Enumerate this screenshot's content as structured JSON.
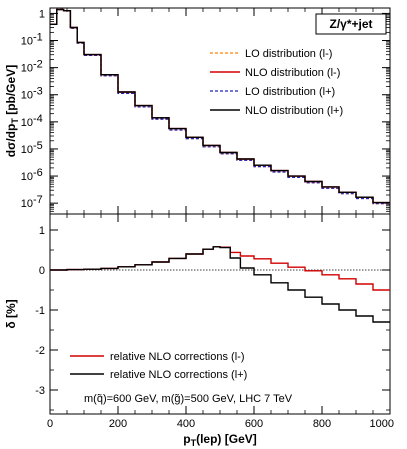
{
  "title_box": "Z/γ*+jet",
  "note": "m(q̃)=600 GeV, m(g̃)=500 GeV, LHC 7 TeV",
  "colors": {
    "lo_lminus": "#ff8000",
    "nlo_lminus": "#d00000",
    "lo_lplus": "#2020c0",
    "nlo_lplus": "#000000",
    "zero_line": "#000000"
  },
  "chart_data": [
    {
      "type": "line",
      "panel": "top",
      "xlabel": "",
      "ylabel": "dσ/dp_T [pb/GeV]",
      "ylabel_main": "dσ/dp",
      "ylabel_sub": "T",
      "ylabel_unit": " [pb/GeV]",
      "xlim": [
        0,
        1000
      ],
      "ylim_log10": [
        -7.4,
        0.2
      ],
      "yscale": "log",
      "yticks": [
        {
          "exp": 0,
          "label": "1",
          "sup": ""
        },
        {
          "exp": -1,
          "label": "10",
          "sup": "-1"
        },
        {
          "exp": -2,
          "label": "10",
          "sup": "-2"
        },
        {
          "exp": -3,
          "label": "10",
          "sup": "-3"
        },
        {
          "exp": -4,
          "label": "10",
          "sup": "-4"
        },
        {
          "exp": -5,
          "label": "10",
          "sup": "-5"
        },
        {
          "exp": -6,
          "label": "10",
          "sup": "-6"
        },
        {
          "exp": -7,
          "label": "10",
          "sup": "-7"
        }
      ],
      "x": [
        0,
        20,
        40,
        60,
        80,
        100,
        150,
        200,
        250,
        300,
        350,
        400,
        450,
        500,
        550,
        600,
        650,
        700,
        750,
        800,
        850,
        900,
        950,
        1000
      ],
      "series": [
        {
          "name": "LO distribution (l-)",
          "key": "lo_lminus",
          "style": "dashed",
          "values_log10": [
            -0.4,
            0.15,
            0.1,
            -0.55,
            -1.1,
            -1.55,
            -2.3,
            -2.95,
            -3.45,
            -3.9,
            -4.3,
            -4.62,
            -4.92,
            -5.18,
            -5.42,
            -5.65,
            -5.85,
            -6.05,
            -6.25,
            -6.45,
            -6.65,
            -6.83,
            -7.02,
            -7.2
          ]
        },
        {
          "name": "NLO distribution (l-)",
          "key": "nlo_lminus",
          "style": "solid",
          "values_log10": [
            -0.4,
            0.14,
            0.1,
            -0.52,
            -1.07,
            -1.52,
            -2.26,
            -2.9,
            -3.4,
            -3.85,
            -4.25,
            -4.57,
            -4.87,
            -5.13,
            -5.37,
            -5.6,
            -5.8,
            -6.0,
            -6.2,
            -6.4,
            -6.6,
            -6.78,
            -6.98,
            -7.15
          ]
        },
        {
          "name": "LO distribution (l+)",
          "key": "lo_lplus",
          "style": "dashed",
          "values_log10": [
            -0.4,
            0.15,
            0.1,
            -0.55,
            -1.1,
            -1.55,
            -2.3,
            -2.95,
            -3.45,
            -3.9,
            -4.3,
            -4.62,
            -4.92,
            -5.18,
            -5.42,
            -5.65,
            -5.85,
            -6.05,
            -6.25,
            -6.45,
            -6.65,
            -6.83,
            -7.02,
            -7.2
          ]
        },
        {
          "name": "NLO distribution (l+)",
          "key": "nlo_lplus",
          "style": "solid",
          "values_log10": [
            -0.4,
            0.14,
            0.1,
            -0.52,
            -1.07,
            -1.52,
            -2.26,
            -2.9,
            -3.4,
            -3.85,
            -4.25,
            -4.57,
            -4.87,
            -5.13,
            -5.37,
            -5.6,
            -5.8,
            -6.0,
            -6.2,
            -6.4,
            -6.6,
            -6.78,
            -6.98,
            -7.15
          ]
        }
      ]
    },
    {
      "type": "line",
      "panel": "bottom",
      "xlabel": "p_T(lep) [GeV]",
      "xlabel_main": "p",
      "xlabel_sub": "T",
      "xlabel_unit": "(lep) [GeV]",
      "ylabel": "δ [%]",
      "xlim": [
        0,
        1000
      ],
      "ylim": [
        -3.6,
        1.4
      ],
      "xticks": [
        0,
        200,
        400,
        600,
        800,
        1000
      ],
      "yticks": [
        1,
        0,
        -1,
        -2,
        -3
      ],
      "x": [
        0,
        50,
        100,
        150,
        200,
        250,
        300,
        350,
        400,
        450,
        480,
        500,
        530,
        560,
        600,
        650,
        700,
        750,
        800,
        850,
        900,
        950,
        1000
      ],
      "series": [
        {
          "name": "relative NLO corrections (l-)",
          "key": "nlo_lminus",
          "values": [
            0.0,
            0.01,
            0.02,
            0.04,
            0.08,
            0.13,
            0.2,
            0.29,
            0.4,
            0.52,
            0.58,
            0.57,
            0.44,
            0.35,
            0.28,
            0.17,
            0.07,
            -0.02,
            -0.12,
            -0.22,
            -0.35,
            -0.5,
            -0.68
          ]
        },
        {
          "name": "relative NLO corrections (l+)",
          "key": "nlo_lplus",
          "values": [
            0.0,
            0.01,
            0.02,
            0.04,
            0.08,
            0.13,
            0.2,
            0.29,
            0.4,
            0.52,
            0.58,
            0.56,
            0.3,
            0.05,
            -0.12,
            -0.32,
            -0.5,
            -0.68,
            -0.85,
            -1.0,
            -1.15,
            -1.3,
            -1.45
          ]
        }
      ]
    }
  ]
}
